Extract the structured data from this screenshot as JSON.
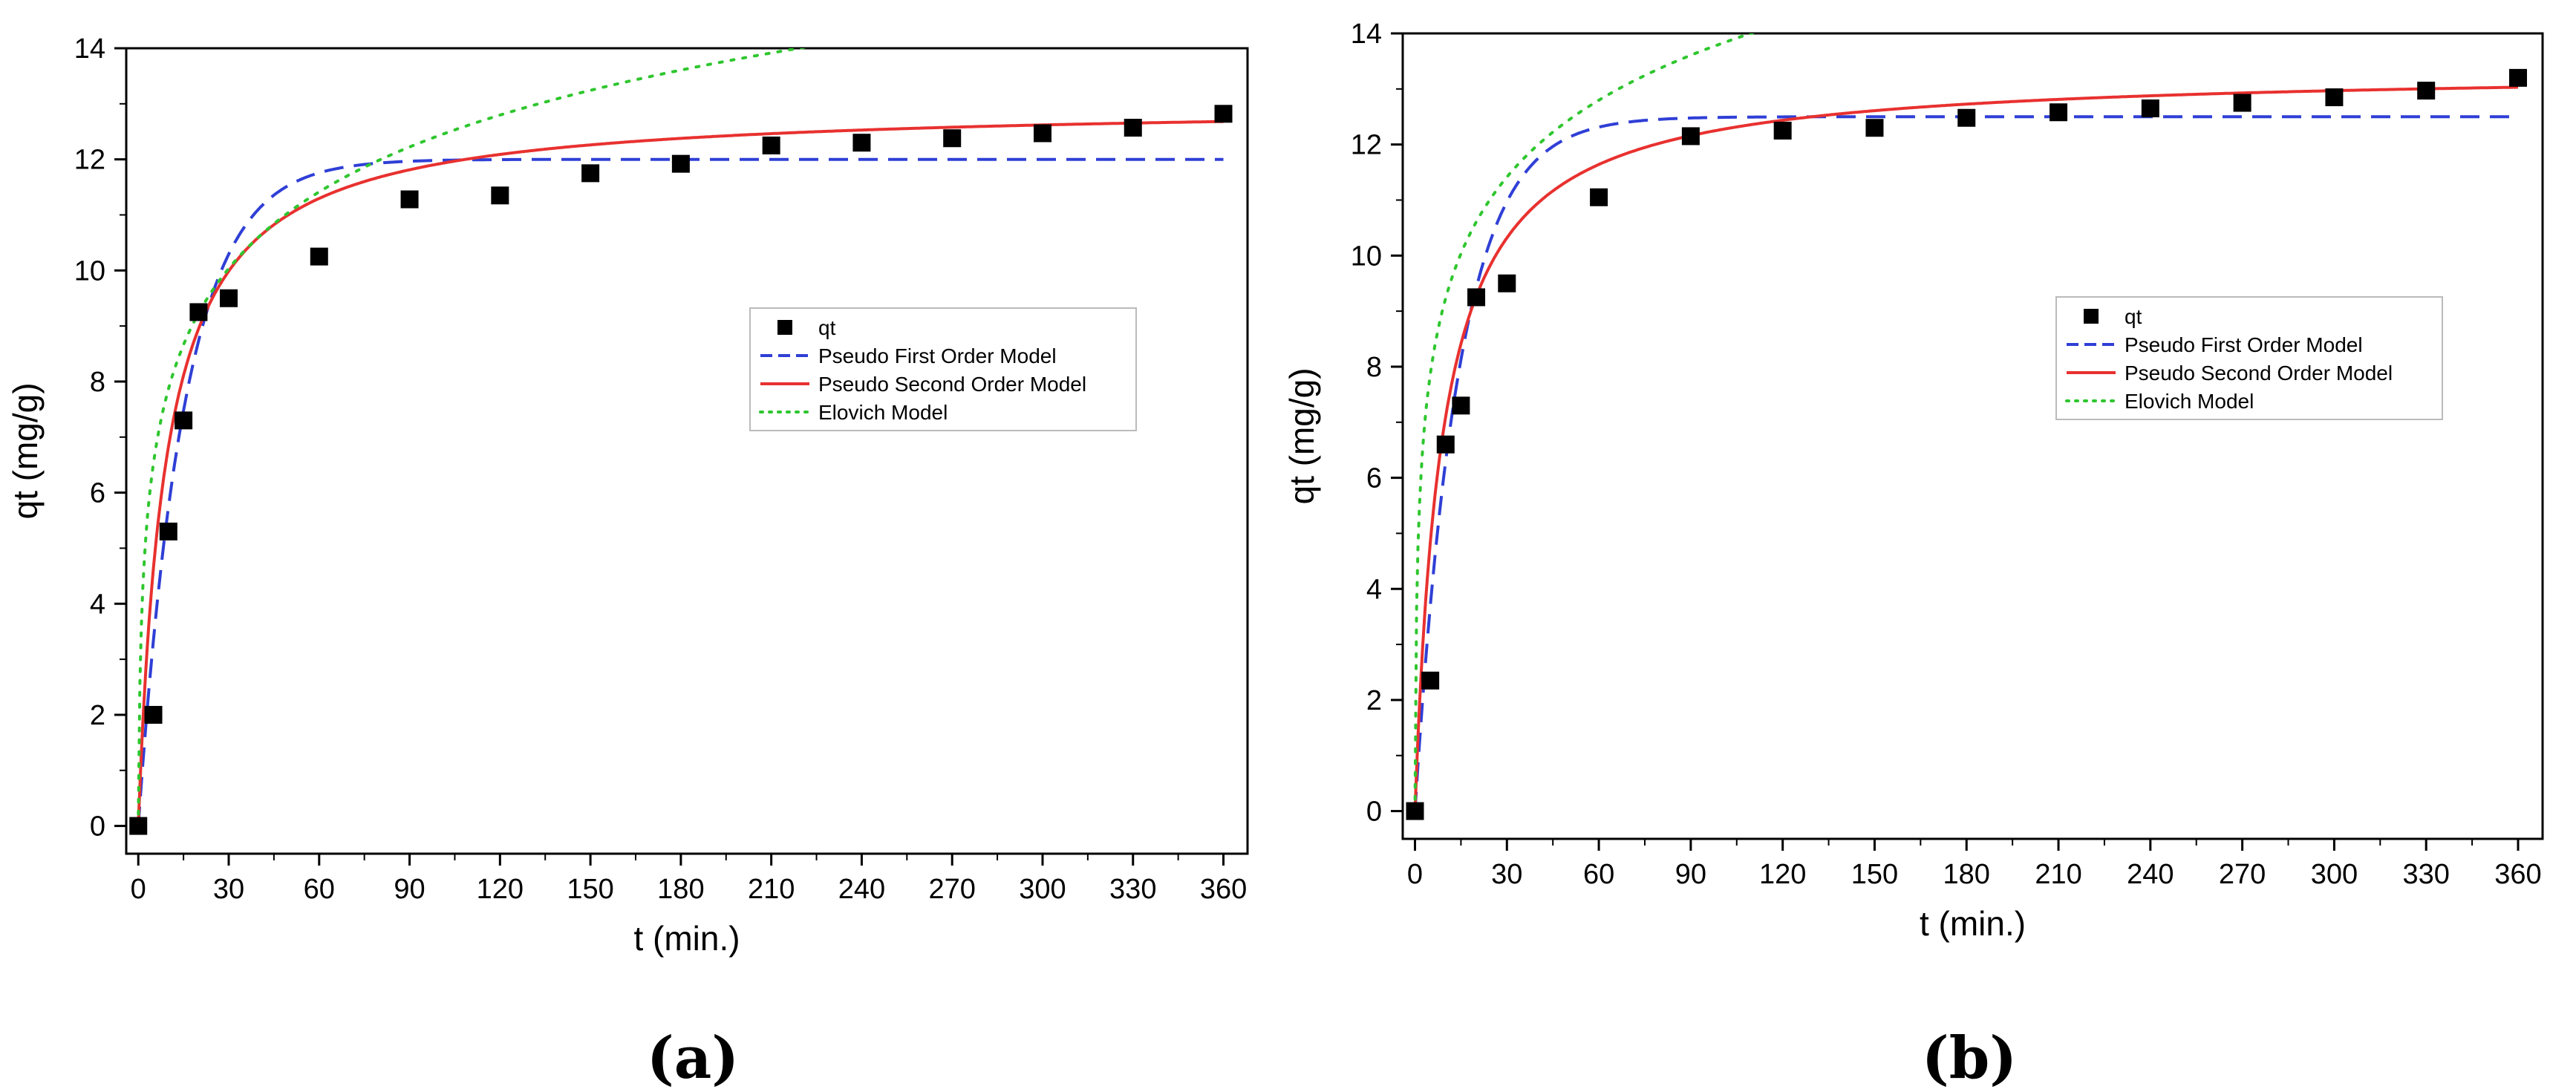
{
  "chart_data": [
    {
      "type": "scatter",
      "panel_label": "(a)",
      "xlabel": "t (min.)",
      "ylabel": "qt (mg/g)",
      "xlim": [
        -4,
        368
      ],
      "ylim": [
        -0.5,
        14
      ],
      "xticks": [
        0,
        30,
        60,
        90,
        120,
        150,
        180,
        210,
        240,
        270,
        300,
        330,
        360
      ],
      "yticks": [
        0,
        2,
        4,
        6,
        8,
        10,
        12,
        14
      ],
      "grid": false,
      "legend_position": "center-right",
      "series": [
        {
          "name": "qt",
          "kind": "markers",
          "color": "#000000",
          "points": [
            [
              0,
              0
            ],
            [
              5,
              2.0
            ],
            [
              10,
              5.3
            ],
            [
              15,
              7.3
            ],
            [
              20,
              9.25
            ],
            [
              30,
              9.5
            ],
            [
              60,
              10.25
            ],
            [
              90,
              11.28
            ],
            [
              120,
              11.35
            ],
            [
              150,
              11.75
            ],
            [
              180,
              11.92
            ],
            [
              210,
              12.25
            ],
            [
              240,
              12.3
            ],
            [
              270,
              12.38
            ],
            [
              300,
              12.47
            ],
            [
              330,
              12.57
            ],
            [
              360,
              12.82
            ]
          ]
        },
        {
          "name": "Pseudo First Order Model",
          "kind": "line",
          "dash": "dash",
          "color": "#2f3fd6",
          "model": "pfo",
          "params": {
            "qe": 12.0,
            "k1": 0.065
          }
        },
        {
          "name": "Pseudo Second Order Model",
          "kind": "line",
          "dash": "solid",
          "color": "#e8312f",
          "model": "pso",
          "params": {
            "qe": 13.0,
            "k2": 0.0085
          }
        },
        {
          "name": "Elovich Model",
          "kind": "line",
          "dash": "dot",
          "color": "#2fc62f",
          "model": "elovich",
          "params": {
            "a": 10.0,
            "b": 0.5
          }
        }
      ]
    },
    {
      "type": "scatter",
      "panel_label": "(b)",
      "xlabel": "t (min.)",
      "ylabel": "qt (mg/g)",
      "xlim": [
        -4,
        368
      ],
      "ylim": [
        -0.5,
        14
      ],
      "xticks": [
        0,
        30,
        60,
        90,
        120,
        150,
        180,
        210,
        240,
        270,
        300,
        330,
        360
      ],
      "yticks": [
        0,
        2,
        4,
        6,
        8,
        10,
        12,
        14
      ],
      "grid": false,
      "legend_position": "center-right",
      "series": [
        {
          "name": "qt",
          "kind": "markers",
          "color": "#000000",
          "points": [
            [
              0,
              0
            ],
            [
              5,
              2.35
            ],
            [
              10,
              6.6
            ],
            [
              15,
              7.3
            ],
            [
              20,
              9.25
            ],
            [
              30,
              9.5
            ],
            [
              60,
              11.05
            ],
            [
              90,
              12.15
            ],
            [
              120,
              12.25
            ],
            [
              150,
              12.3
            ],
            [
              180,
              12.48
            ],
            [
              210,
              12.58
            ],
            [
              240,
              12.65
            ],
            [
              270,
              12.75
            ],
            [
              300,
              12.85
            ],
            [
              330,
              12.97
            ],
            [
              360,
              13.2
            ]
          ]
        },
        {
          "name": "Pseudo First Order Model",
          "kind": "line",
          "dash": "dash",
          "color": "#2f3fd6",
          "model": "pfo",
          "params": {
            "qe": 12.5,
            "k1": 0.07
          }
        },
        {
          "name": "Pseudo Second Order Model",
          "kind": "line",
          "dash": "solid",
          "color": "#e8312f",
          "model": "pso",
          "params": {
            "qe": 13.35,
            "k2": 0.0085
          }
        },
        {
          "name": "Elovich Model",
          "kind": "line",
          "dash": "dot",
          "color": "#2fc62f",
          "model": "elovich",
          "params": {
            "a": 20.0,
            "b": 0.5
          }
        }
      ]
    }
  ]
}
